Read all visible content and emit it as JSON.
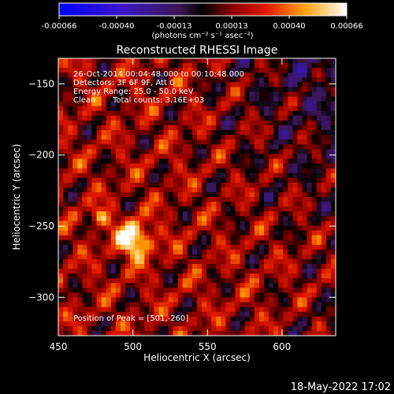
{
  "colorbar": {
    "ticks": [
      "-0.00066",
      "-0.00040",
      "-0.00013",
      "0.00013",
      "0.00040",
      "0.00066"
    ],
    "units": "(photons cm⁻² s⁻¹ asec⁻²)"
  },
  "chart_data": {
    "type": "heatmap",
    "title": "Reconstructed RHESSI Image",
    "xlabel": "Heliocentric X (arcsec)",
    "ylabel": "Heliocentric Y (arcsec)",
    "xlim": [
      450,
      636
    ],
    "ylim": [
      -327,
      -132
    ],
    "x_ticks": [
      450,
      500,
      550,
      600
    ],
    "y_ticks": [
      -150,
      -200,
      -250,
      -300
    ],
    "colorbar_range": [
      -0.00066,
      0.00066
    ],
    "colormap": "blue-black-red-yellow-white",
    "peak": [
      501,
      -260
    ],
    "info_lines": [
      "26-Oct-2014 00:04:48.000 to 00:10:48.000",
      "Detectors: 3F 6F 9F, Att 0",
      "Energy Range: 25.0 - 50.0 keV",
      "Clean",
      "Total counts: 3.16E+03"
    ],
    "peak_label": "Position of Peak = [501,-260]"
  },
  "timestamp": "18-May-2022 17:02",
  "colors": {
    "background": "#000000",
    "text": "#ffffff"
  }
}
